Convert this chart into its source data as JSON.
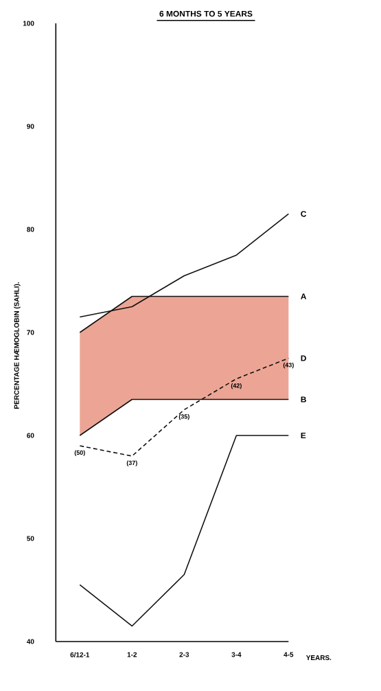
{
  "chart_data": {
    "type": "line",
    "title": "6 MONTHS TO 5 YEARS",
    "ylabel": "PERCENTAGE HÆMOGLOBIN (SAHLI).",
    "categories": [
      "6/12-1",
      "1-2",
      "2-3",
      "3-4",
      "4-5"
    ],
    "series": [
      {
        "name": "A",
        "color": "#111111",
        "values": [
          70,
          73.5,
          73.5,
          73.5,
          73.5
        ],
        "lower": [
          60,
          63.5,
          63.5,
          63.5,
          63.5
        ],
        "upper": [
          70,
          73.5,
          73.5,
          73.5,
          73.5
        ]
      },
      {
        "name": "B",
        "color": "#111111",
        "values": [
          60,
          63.5,
          63.5,
          63.5,
          63.5
        ]
      },
      {
        "name": "C",
        "color": "#111111",
        "values": [
          71.5,
          72.5,
          75.5,
          77.5,
          81.5
        ]
      },
      {
        "name": "D",
        "color": "#111111",
        "line_style": "dashed",
        "values": [
          59,
          58,
          62.5,
          65.5,
          67.5
        ]
      },
      {
        "name": "E",
        "color": "#111111",
        "values": [
          45.5,
          41.5,
          46.5,
          60,
          60
        ]
      }
    ],
    "annotations": [
      {
        "text": "(50)",
        "x": "6/12-1",
        "y": 59
      },
      {
        "text": "(37)",
        "x": "1-2",
        "y": 58
      },
      {
        "text": "(35)",
        "x": "2-3",
        "y": 62.5
      },
      {
        "text": "(42)",
        "x": "3-4",
        "y": 65.5
      },
      {
        "text": "(43)",
        "x": "4-5",
        "y": 67.5
      },
      "YEARS."
    ],
    "ylim": [
      40,
      100
    ],
    "yticks": [
      40,
      50,
      60,
      70,
      80,
      90,
      100
    ],
    "grid": false,
    "marker": "none",
    "line_style": "solid"
  }
}
